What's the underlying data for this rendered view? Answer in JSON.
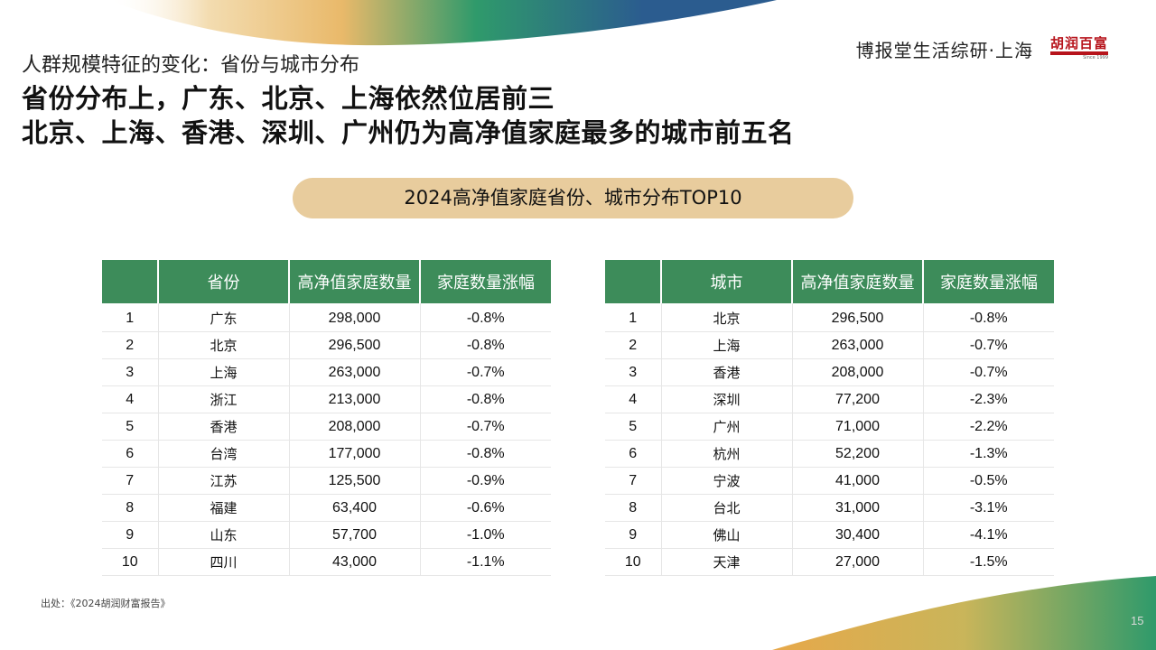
{
  "header": {
    "subtitle": "人群规模特征的变化：省份与城市分布",
    "headline_line1": "省份分布上，广东、北京、上海依然位居前三",
    "headline_line2": "北京、上海、香港、深圳、广州仍为高净值家庭最多的城市前五名",
    "brand": "博报堂生活综研·上海",
    "logo_text": "胡润百富",
    "logo_since": "Since 1999"
  },
  "section_title": "2024高净值家庭省份、城市分布TOP10",
  "province_table": {
    "columns": [
      "",
      "省份",
      "高净值家庭数量",
      "家庭数量涨幅"
    ],
    "rows": [
      {
        "rank": "1",
        "name": "广东",
        "count": "298,000",
        "change": "-0.8%"
      },
      {
        "rank": "2",
        "name": "北京",
        "count": "296,500",
        "change": "-0.8%"
      },
      {
        "rank": "3",
        "name": "上海",
        "count": "263,000",
        "change": "-0.7%"
      },
      {
        "rank": "4",
        "name": "浙江",
        "count": "213,000",
        "change": "-0.8%"
      },
      {
        "rank": "5",
        "name": "香港",
        "count": "208,000",
        "change": "-0.7%"
      },
      {
        "rank": "6",
        "name": "台湾",
        "count": "177,000",
        "change": "-0.8%"
      },
      {
        "rank": "7",
        "name": "江苏",
        "count": "125,500",
        "change": "-0.9%"
      },
      {
        "rank": "8",
        "name": "福建",
        "count": "63,400",
        "change": "-0.6%"
      },
      {
        "rank": "9",
        "name": "山东",
        "count": "57,700",
        "change": "-1.0%"
      },
      {
        "rank": "10",
        "name": "四川",
        "count": "43,000",
        "change": "-1.1%"
      }
    ]
  },
  "city_table": {
    "columns": [
      "",
      "城市",
      "高净值家庭数量",
      "家庭数量涨幅"
    ],
    "rows": [
      {
        "rank": "1",
        "name": "北京",
        "count": "296,500",
        "change": "-0.8%"
      },
      {
        "rank": "2",
        "name": "上海",
        "count": "263,000",
        "change": "-0.7%"
      },
      {
        "rank": "3",
        "name": "香港",
        "count": "208,000",
        "change": "-0.7%"
      },
      {
        "rank": "4",
        "name": "深圳",
        "count": "77,200",
        "change": "-2.3%"
      },
      {
        "rank": "5",
        "name": "广州",
        "count": "71,000",
        "change": "-2.2%"
      },
      {
        "rank": "6",
        "name": "杭州",
        "count": "52,200",
        "change": "-1.3%"
      },
      {
        "rank": "7",
        "name": "宁波",
        "count": "41,000",
        "change": "-0.5%"
      },
      {
        "rank": "8",
        "name": "台北",
        "count": "31,000",
        "change": "-3.1%"
      },
      {
        "rank": "9",
        "name": "佛山",
        "count": "30,400",
        "change": "-4.1%"
      },
      {
        "rank": "10",
        "name": "天津",
        "count": "27,000",
        "change": "-1.5%"
      }
    ]
  },
  "footer": {
    "source": "出处：《2024胡润财富报告》",
    "page_number": "15"
  },
  "colors": {
    "header_green": "#3d8c5a",
    "pill_tan": "#e8cc9d",
    "logo_red": "#b7141c"
  }
}
